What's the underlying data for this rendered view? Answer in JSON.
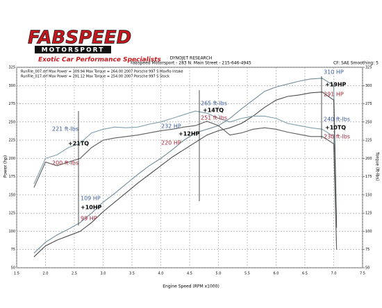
{
  "logo": {
    "name": "FABSPEED",
    "sub": "MOTORSPORT",
    "slogan": "Exotic Car Performance Specialists"
  },
  "chart_data": {
    "type": "line",
    "header": "DYNOJET RESEARCH",
    "subheader": "Fabspeed Motorsport - 283 N. Main Street - 215-646-4945",
    "settings_text": "CF: SAE  Smoothing: 5",
    "runs": [
      "RunFile_007.drf Max Power = 309.94   Max Torque = 264.00   2007 Porsche 997 S Maxflo Intake",
      "RunFile_017.drf Max Power = 291.12   Max Torque = 254.00   2007 Porsche 997 S Stock"
    ],
    "xlabel": "Engine Speed (RPM x1000)",
    "ylabel": "Power (hp)",
    "y2label": "Torque (ft-lbs)",
    "xlim": [
      1.5,
      7.5
    ],
    "xticks": [
      1.5,
      {
        "value": 2,
        "label": "2.0"
      },
      2.5,
      {
        "value": 3,
        "label": "3.0"
      },
      3.5,
      {
        "value": 4,
        "label": "4.0"
      },
      4.5,
      {
        "value": 5,
        "label": "5.0"
      },
      5.5,
      {
        "value": 6,
        "label": "6.0"
      },
      6.5,
      {
        "value": 7,
        "label": "7.0"
      },
      7.5
    ],
    "ylim": [
      50,
      325
    ],
    "yticks": [
      50,
      75,
      100,
      125,
      150,
      175,
      200,
      225,
      250,
      275,
      300,
      325
    ],
    "y2lim": [
      50,
      325
    ],
    "y2ticks": [
      50,
      75,
      100,
      125,
      150,
      175,
      200,
      225,
      250,
      275,
      300,
      325
    ],
    "grid": true,
    "x": [
      1.8,
      2.0,
      2.2,
      2.4,
      2.6,
      2.8,
      3.0,
      3.2,
      3.4,
      3.6,
      3.8,
      4.0,
      4.2,
      4.4,
      4.6,
      4.8,
      5.0,
      5.2,
      5.4,
      5.6,
      5.8,
      6.0,
      6.2,
      6.4,
      6.6,
      6.8,
      7.0,
      7.05
    ],
    "series": [
      {
        "name": "Maxflo Power",
        "color": "#6f8c99",
        "values": [
          70,
          85,
          95,
          103,
          112,
          125,
          140,
          152,
          165,
          178,
          190,
          200,
          212,
          225,
          235,
          240,
          245,
          255,
          268,
          280,
          292,
          298,
          302,
          306,
          309,
          310,
          300,
          110
        ]
      },
      {
        "name": "Stock Power",
        "color": "#4a4a4a",
        "values": [
          65,
          80,
          88,
          94,
          100,
          112,
          127,
          140,
          153,
          166,
          178,
          190,
          202,
          212,
          222,
          232,
          238,
          242,
          248,
          258,
          270,
          280,
          285,
          287,
          290,
          291,
          280,
          105
        ]
      },
      {
        "name": "Maxflo Torque",
        "color": "#7f9faa",
        "axis": "y2",
        "values": [
          165,
          200,
          205,
          215,
          221,
          235,
          240,
          243,
          242,
          243,
          247,
          250,
          255,
          260,
          265,
          262,
          255,
          250,
          255,
          258,
          258,
          255,
          248,
          245,
          242,
          240,
          230,
          80
        ]
      },
      {
        "name": "Stock Torque",
        "color": "#5c5c5c",
        "axis": "y2",
        "values": [
          160,
          195,
          190,
          195,
          200,
          215,
          225,
          228,
          230,
          232,
          235,
          238,
          240,
          243,
          245,
          251,
          245,
          232,
          235,
          240,
          242,
          240,
          236,
          233,
          230,
          230,
          220,
          75
        ]
      }
    ],
    "annotations": [
      {
        "text": "221 ft-lbs",
        "color": "#3a5a9e"
      },
      {
        "text": "+21TQ",
        "color": "#000000"
      },
      {
        "text": "200 ft-lbs",
        "color": "#a32434"
      },
      {
        "text": "109 HP",
        "color": "#3a5a9e"
      },
      {
        "text": "+10HP",
        "color": "#000000"
      },
      {
        "text": "99 HP",
        "color": "#a32434"
      },
      {
        "text": "232 HP",
        "color": "#3a5a9e"
      },
      {
        "text": "+12HP",
        "color": "#000000"
      },
      {
        "text": "220 HP",
        "color": "#a32434"
      },
      {
        "text": "265 ft-lbs",
        "color": "#3a5a9e"
      },
      {
        "text": "+14TQ",
        "color": "#000000"
      },
      {
        "text": "251 ft-lbs",
        "color": "#a32434"
      },
      {
        "text": "310 HP",
        "color": "#3a5a9e"
      },
      {
        "text": "+19HP",
        "color": "#000000"
      },
      {
        "text": "291 HP",
        "color": "#a32434"
      },
      {
        "text": "240 ft-lbs",
        "color": "#3a5a9e"
      },
      {
        "text": "+10TQ",
        "color": "#000000"
      },
      {
        "text": "230 ft-lbs",
        "color": "#a32434"
      }
    ]
  }
}
